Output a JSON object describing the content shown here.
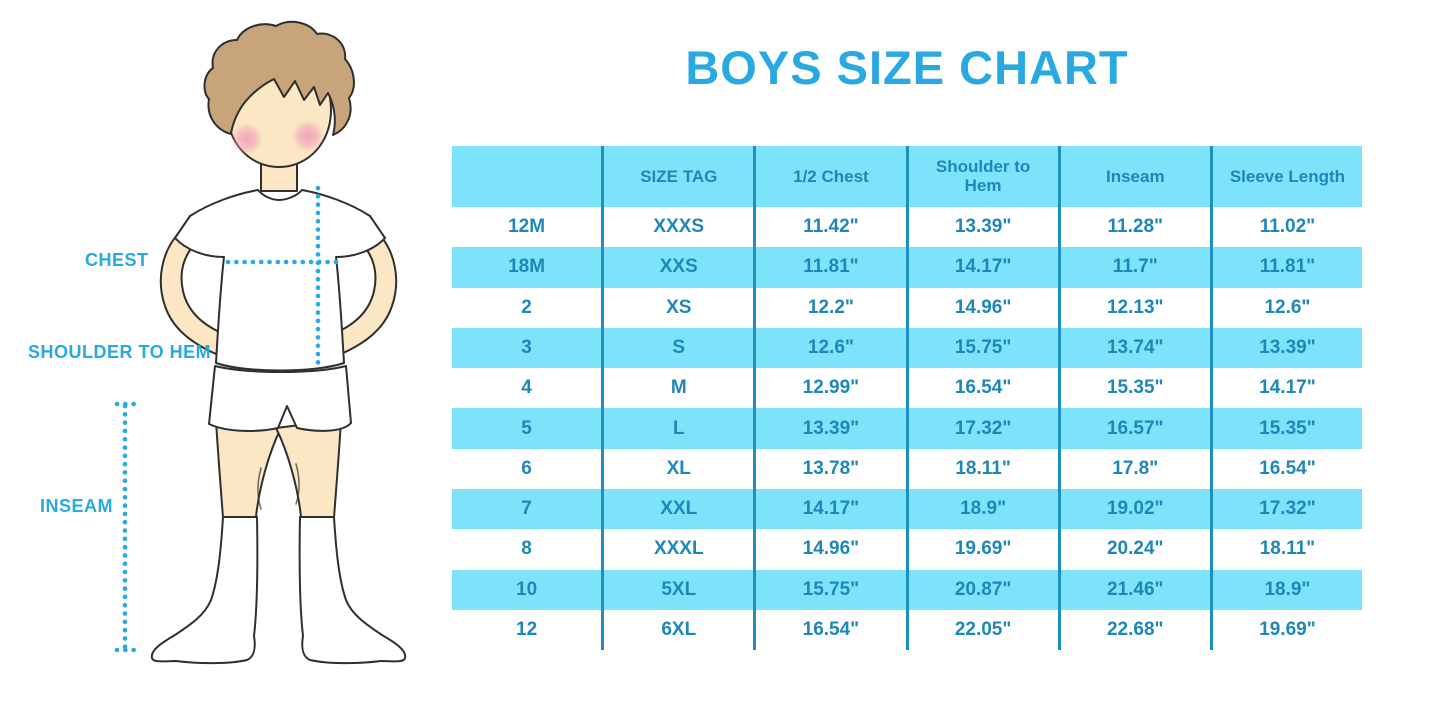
{
  "title": "BOYS SIZE CHART",
  "diagram": {
    "figure": "boy-in-tshirt-shorts-and-socks",
    "labels": {
      "chest": "CHEST",
      "shoulder_to_hem": "SHOULDER TO HEM",
      "inseam": "INSEAM"
    }
  },
  "chart_data": {
    "type": "table",
    "title": "BOYS SIZE CHART",
    "columns": [
      "",
      "SIZE TAG",
      "1/2 Chest",
      "Shoulder to Hem",
      "Inseam",
      "Sleeve Length"
    ],
    "rows": [
      [
        "12M",
        "XXXS",
        "11.42\"",
        "13.39\"",
        "11.28\"",
        "11.02\""
      ],
      [
        "18M",
        "XXS",
        "11.81\"",
        "14.17\"",
        "11.7\"",
        "11.81\""
      ],
      [
        "2",
        "XS",
        "12.2\"",
        "14.96\"",
        "12.13\"",
        "12.6\""
      ],
      [
        "3",
        "S",
        "12.6\"",
        "15.75\"",
        "13.74\"",
        "13.39\""
      ],
      [
        "4",
        "M",
        "12.99\"",
        "16.54\"",
        "15.35\"",
        "14.17\""
      ],
      [
        "5",
        "L",
        "13.39\"",
        "17.32\"",
        "16.57\"",
        "15.35\""
      ],
      [
        "6",
        "XL",
        "13.78\"",
        "18.11\"",
        "17.8\"",
        "16.54\""
      ],
      [
        "7",
        "XXL",
        "14.17\"",
        "18.9\"",
        "19.02\"",
        "17.32\""
      ],
      [
        "8",
        "XXXL",
        "14.96\"",
        "19.69\"",
        "20.24\"",
        "18.11\""
      ],
      [
        "10",
        "5XL",
        "15.75\"",
        "20.87\"",
        "21.46\"",
        "18.9\""
      ],
      [
        "12",
        "6XL",
        "16.54\"",
        "22.05\"",
        "22.68\"",
        "19.69\""
      ]
    ],
    "layout": {
      "header_fill": "light-blue",
      "row_striping": "alternate light-blue starting at second data row",
      "grid": "vertical separators only"
    }
  },
  "colors": {
    "accent": "#29A9E1",
    "row_highlight": "#7DE3FA",
    "table_text": "#1E87B8",
    "grid_line": "#1E8FC0",
    "skin": "#FBE7C4",
    "hair": "#C8A47A",
    "outline": "#2F2F2F",
    "blush": "#F0A2B8"
  }
}
